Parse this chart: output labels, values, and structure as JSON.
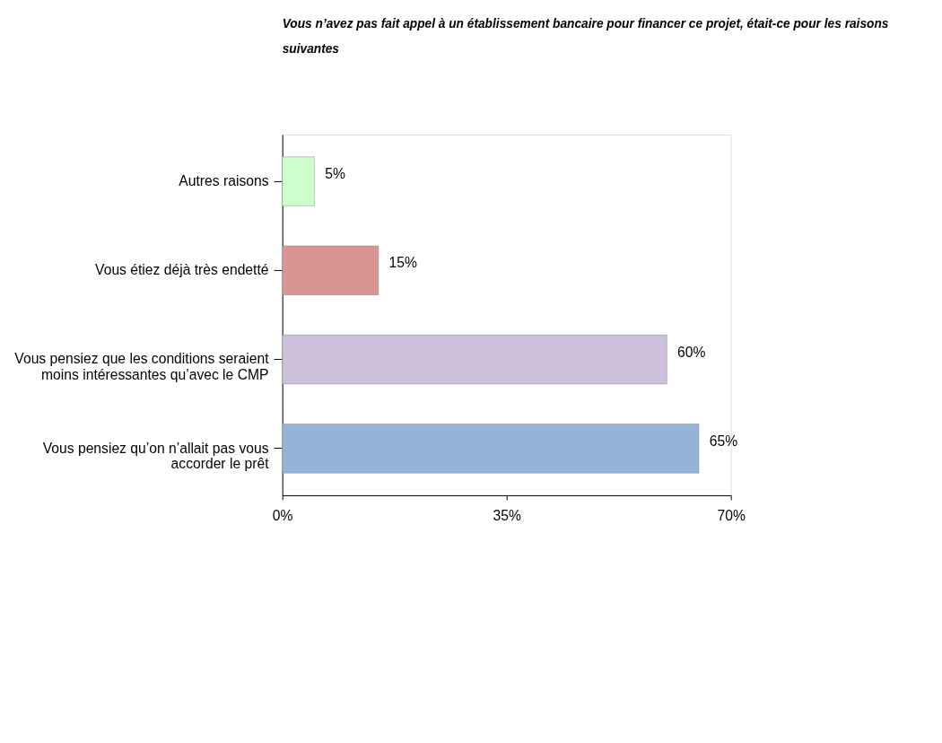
{
  "chart_data": {
    "type": "bar",
    "orientation": "horizontal",
    "title": "Vous n’avez pas fait appel à un établissement bancaire pour financer ce projet, était-ce pour les raisons suivantes",
    "categories": [
      "Autres raisons",
      "Vous étiez déjà très endetté",
      "Vous pensiez que les conditions seraient\nmoins intéressantes qu’avec le CMP",
      "Vous pensiez qu’on n’allait pas vous\naccorder le prêt"
    ],
    "values": [
      5,
      15,
      60,
      65
    ],
    "colors": [
      "#ccffcc",
      "#d99594",
      "#ccc0da",
      "#95b3d7"
    ],
    "value_labels": [
      "5%",
      "15%",
      "60%",
      "65%"
    ],
    "xlim": [
      0,
      70
    ],
    "xticks": [
      {
        "value": 0,
        "label": "0%"
      },
      {
        "value": 35,
        "label": "35%"
      },
      {
        "value": 70,
        "label": "70%"
      }
    ],
    "grid": false
  }
}
